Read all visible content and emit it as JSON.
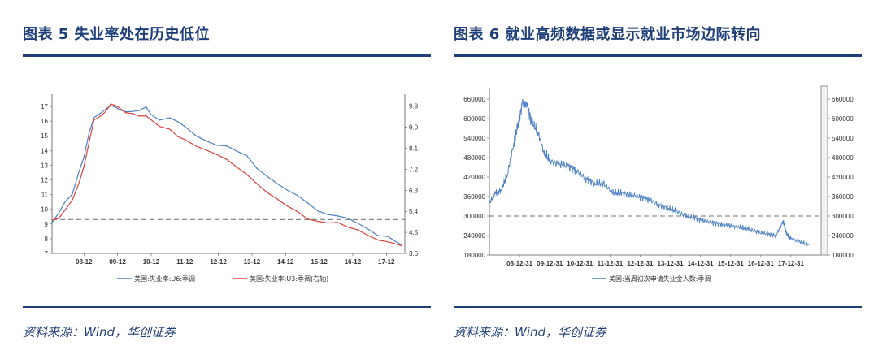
{
  "left": {
    "title": "图表 5  失业率处在历史低位",
    "source": "资料来源：Wind，华创证券"
  },
  "right": {
    "title": "图表 6  就业高频数据或显示就业市场边际转向",
    "source": "资料来源：Wind，华创证券"
  },
  "colors": {
    "navy": "#1f3f79",
    "blue": "#4a7fc1",
    "red": "#d9413c",
    "dashed": "#8c8c8c"
  },
  "chart_data": [
    {
      "type": "line",
      "title": "",
      "x_ticks": [
        "08-12",
        "09-12",
        "10-12",
        "11-12",
        "12-12",
        "13-12",
        "14-12",
        "15-12",
        "16-12",
        "17-12"
      ],
      "y_left_ticks": [
        "7",
        "8",
        "9",
        "10",
        "11",
        "12",
        "13",
        "14",
        "15",
        "16",
        "17"
      ],
      "y_left_range": [
        7,
        17.5
      ],
      "y_right_ticks": [
        "3.6",
        "4.5",
        "5.4",
        "6.3",
        "7.2",
        "8.1",
        "9.0",
        "9.9"
      ],
      "y_right_range": [
        3.6,
        10.2
      ],
      "x_range": [
        2008,
        2018.5
      ],
      "reference_line": {
        "axis": "left",
        "value": 9.3,
        "style": "dashed"
      },
      "series": [
        {
          "name": "美国:失业率:U6:季调",
          "axis": "left",
          "color": "#4a7fc1",
          "x": [
            2008.0,
            2008.2,
            2008.4,
            2008.6,
            2008.8,
            2008.95,
            2009.1,
            2009.25,
            2009.45,
            2009.6,
            2009.75,
            2009.9,
            2010.0,
            2010.2,
            2010.4,
            2010.6,
            2010.8,
            2010.95,
            2011.2,
            2011.5,
            2011.75,
            2011.95,
            2012.3,
            2012.6,
            2012.9,
            2013.2,
            2013.5,
            2013.8,
            2014.1,
            2014.4,
            2014.7,
            2015.0,
            2015.3,
            2015.6,
            2015.9,
            2016.2,
            2016.5,
            2016.8,
            2017.1,
            2017.4,
            2017.7,
            2018.0,
            2018.2,
            2018.4
          ],
          "values": [
            9.1,
            9.7,
            10.5,
            11.0,
            12.6,
            13.6,
            15.2,
            16.2,
            16.5,
            16.8,
            17.1,
            17.0,
            16.8,
            16.6,
            16.6,
            16.7,
            17.0,
            16.5,
            16.1,
            16.2,
            15.9,
            15.6,
            15.0,
            14.7,
            14.4,
            14.3,
            13.9,
            13.6,
            12.8,
            12.3,
            11.8,
            11.3,
            10.9,
            10.4,
            9.9,
            9.7,
            9.6,
            9.4,
            9.0,
            8.6,
            8.2,
            8.2,
            7.9,
            7.6
          ]
        },
        {
          "name": "美国:失业率:U3:季调(右轴)",
          "axis": "right",
          "color": "#d9413c",
          "x": [
            2008.0,
            2008.2,
            2008.4,
            2008.6,
            2008.8,
            2008.95,
            2009.1,
            2009.25,
            2009.45,
            2009.6,
            2009.75,
            2009.9,
            2010.0,
            2010.2,
            2010.4,
            2010.6,
            2010.8,
            2010.95,
            2011.2,
            2011.5,
            2011.75,
            2011.95,
            2012.3,
            2012.6,
            2012.9,
            2013.2,
            2013.5,
            2013.8,
            2014.1,
            2014.4,
            2014.7,
            2015.0,
            2015.3,
            2015.6,
            2015.9,
            2016.2,
            2016.5,
            2016.8,
            2017.1,
            2017.4,
            2017.7,
            2018.0,
            2018.2,
            2018.4
          ],
          "values": [
            5.0,
            5.1,
            5.5,
            5.9,
            6.6,
            7.3,
            8.3,
            9.3,
            9.5,
            9.7,
            10.0,
            9.9,
            9.8,
            9.6,
            9.6,
            9.5,
            9.5,
            9.3,
            9.0,
            8.9,
            8.6,
            8.5,
            8.2,
            8.0,
            7.8,
            7.6,
            7.3,
            7.0,
            6.6,
            6.2,
            5.9,
            5.6,
            5.4,
            5.1,
            5.0,
            4.9,
            4.9,
            4.7,
            4.6,
            4.4,
            4.2,
            4.1,
            4.0,
            3.9
          ]
        }
      ]
    },
    {
      "type": "line",
      "title": "",
      "x_ticks": [
        "08-12-31",
        "09-12-31",
        "10-12-31",
        "11-12-31",
        "12-12-31",
        "13-12-31",
        "14-12-31",
        "15-12-31",
        "16-12-31",
        "17-12-31"
      ],
      "y_ticks": [
        "180000",
        "240000",
        "300000",
        "360000",
        "420000",
        "480000",
        "540000",
        "600000",
        "660000"
      ],
      "y_range": [
        180000,
        680000
      ],
      "x_range": [
        2008,
        2019.0
      ],
      "reference_line": {
        "value": 300000,
        "style": "dashed"
      },
      "series": [
        {
          "name": "美国:当周初次申请失业金人数:季调",
          "color": "#4a7fc1",
          "x": [
            2008.0,
            2008.2,
            2008.4,
            2008.6,
            2008.8,
            2008.95,
            2009.1,
            2009.25,
            2009.4,
            2009.6,
            2009.8,
            2010.0,
            2010.3,
            2010.6,
            2010.9,
            2011.2,
            2011.5,
            2011.8,
            2012.1,
            2012.4,
            2012.7,
            2013.0,
            2013.3,
            2013.6,
            2013.9,
            2014.2,
            2014.5,
            2014.8,
            2015.1,
            2015.4,
            2015.7,
            2016.0,
            2016.3,
            2016.6,
            2016.9,
            2017.2,
            2017.5,
            2017.75,
            2017.85,
            2018.0,
            2018.3,
            2018.6
          ],
          "values": [
            340000,
            370000,
            380000,
            430000,
            520000,
            580000,
            650000,
            640000,
            590000,
            560000,
            500000,
            470000,
            460000,
            455000,
            440000,
            415000,
            400000,
            400000,
            370000,
            370000,
            365000,
            360000,
            350000,
            335000,
            325000,
            315000,
            300000,
            295000,
            285000,
            280000,
            275000,
            270000,
            265000,
            260000,
            250000,
            245000,
            240000,
            285000,
            245000,
            230000,
            220000,
            212000
          ]
        }
      ]
    }
  ]
}
